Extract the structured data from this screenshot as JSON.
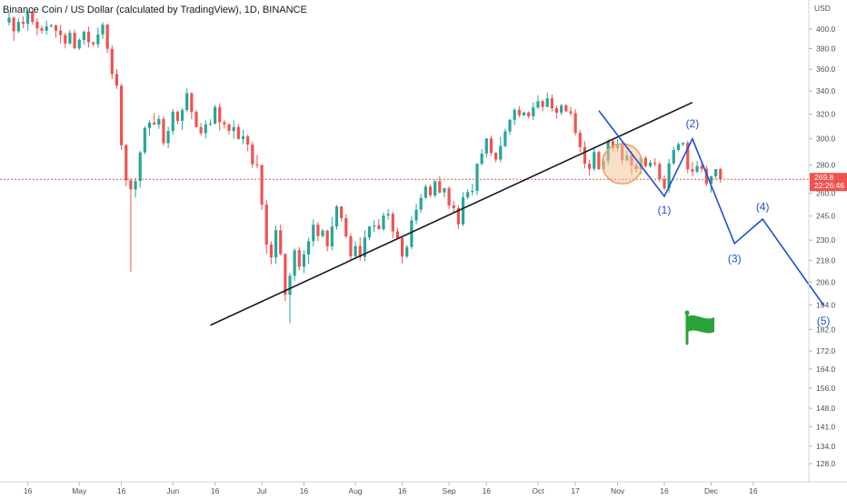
{
  "chart_data": {
    "type": "candlestick",
    "title": "Binance Coin / US Dollar (calculated by TradingView), 1D, BINANCE",
    "currency": "USD",
    "y_scale": "log",
    "ylim": [
      120,
      420
    ],
    "y_ticks": [
      "400.0",
      "380.0",
      "360.0",
      "340.0",
      "320.0",
      "300.0",
      "280.0",
      "260.0",
      "245.0",
      "230.0",
      "218.0",
      "206.0",
      "194.0",
      "182.0",
      "172.0",
      "164.0",
      "156.0",
      "148.0",
      "141.0",
      "134.0",
      "128.0"
    ],
    "x_ticks": [
      "16",
      "May",
      "16",
      "Jun",
      "16",
      "Jul",
      "16",
      "Aug",
      "16",
      "Sep",
      "16",
      "Oct",
      "17",
      "Nov",
      "16",
      "Dec",
      "16"
    ],
    "last_price": "269.8",
    "countdown": "22:26:46",
    "colors": {
      "up": "#26a69a",
      "down": "#ef5350",
      "trendline": "#131722",
      "wave": "#1e4fd6",
      "flag": "#2aa33a",
      "marker_fill": "#f5c49a",
      "marker_stroke": "#f0a060",
      "price_line": "#ef5350"
    },
    "candles": [
      [
        406.9,
        412.2,
        418.4,
        403.8
      ],
      [
        412.2,
        397.7,
        413.4,
        387.7
      ],
      [
        397.7,
        407.6,
        411.6,
        395.8
      ],
      [
        407.6,
        405.6,
        413.7,
        400.6
      ],
      [
        405.6,
        418.5,
        419.7,
        398.2
      ],
      [
        418.5,
        407.7,
        422.9,
        404.4
      ],
      [
        407.7,
        400.9,
        411.6,
        393.5
      ],
      [
        400.9,
        398.3,
        403.9,
        395.2
      ],
      [
        398.3,
        402.8,
        409.1,
        394.3
      ],
      [
        402.8,
        403.9,
        405.5,
        401.6
      ],
      [
        403.9,
        398.4,
        404.9,
        391.1
      ],
      [
        398.4,
        393.8,
        404.3,
        385.0
      ],
      [
        393.8,
        385.2,
        396.1,
        380.3
      ],
      [
        385.2,
        396.1,
        399.4,
        383.5
      ],
      [
        396.1,
        380.3,
        399.5,
        379.8
      ],
      [
        380.3,
        388.8,
        390.7,
        378.6
      ],
      [
        388.8,
        397.3,
        398.5,
        384.0
      ],
      [
        397.3,
        386.5,
        402.6,
        381.4
      ],
      [
        386.5,
        384.4,
        387.0,
        382.1
      ],
      [
        384.4,
        394.5,
        401.8,
        380.7
      ],
      [
        394.5,
        404.7,
        407.3,
        389.8
      ],
      [
        404.7,
        379.8,
        405.6,
        375.7
      ],
      [
        379.8,
        355.5,
        383.5,
        350.8
      ],
      [
        355.5,
        344.8,
        360.2,
        341.9
      ],
      [
        344.8,
        295.1,
        346.7,
        291.3
      ],
      [
        295.1,
        269.1,
        296.0,
        264.9
      ],
      [
        269.1,
        262.7,
        270.6,
        211.8
      ],
      [
        262.7,
        268.6,
        270.9,
        257.2
      ],
      [
        268.6,
        289.5,
        290.6,
        263.9
      ],
      [
        289.5,
        308.6,
        310.0,
        288.0
      ],
      [
        308.6,
        313.0,
        315.0,
        302.6
      ],
      [
        313.0,
        311.4,
        320.8,
        311.2
      ],
      [
        311.4,
        316.0,
        319.3,
        307.9
      ],
      [
        316.0,
        296.6,
        318.1,
        294.5
      ],
      [
        296.6,
        306.2,
        309.7,
        292.8
      ],
      [
        306.2,
        322.1,
        324.4,
        303.2
      ],
      [
        322.1,
        314.5,
        323.0,
        311.6
      ],
      [
        314.5,
        323.5,
        325.3,
        307.1
      ],
      [
        323.5,
        338.1,
        342.4,
        321.6
      ],
      [
        338.1,
        321.9,
        338.9,
        315.8
      ],
      [
        321.9,
        309.3,
        323.8,
        309.1
      ],
      [
        309.3,
        304.5,
        312.6,
        302.5
      ],
      [
        304.5,
        311.6,
        314.8,
        300.2
      ],
      [
        311.6,
        312.2,
        315.7,
        310.3
      ],
      [
        312.2,
        326.1,
        327.8,
        311.7
      ],
      [
        326.1,
        313.3,
        329.4,
        306.4
      ],
      [
        313.3,
        311.6,
        315.2,
        308.3
      ],
      [
        311.6,
        306.3,
        312.3,
        303.3
      ],
      [
        306.3,
        309.4,
        314.7,
        299.8
      ],
      [
        309.4,
        299.9,
        311.8,
        299.4
      ],
      [
        299.9,
        302.0,
        306.9,
        295.9
      ],
      [
        302.0,
        295.5,
        303.3,
        290.5
      ],
      [
        295.5,
        280.7,
        297.7,
        277.9
      ],
      [
        280.7,
        280.0,
        287.6,
        277.7
      ],
      [
        280.0,
        252.4,
        280.8,
        248.9
      ],
      [
        252.4,
        227.4,
        255.4,
        221.9
      ],
      [
        227.4,
        219.8,
        229.2,
        215.9
      ],
      [
        219.8,
        236.1,
        239.0,
        216.1
      ],
      [
        236.1,
        221.8,
        239.6,
        221.0
      ],
      [
        221.8,
        199.3,
        222.2,
        196.1
      ],
      [
        199.3,
        209.5,
        211.0,
        185.0
      ],
      [
        209.5,
        224.0,
        225.1,
        206.7
      ],
      [
        224.0,
        214.5,
        225.9,
        212.5
      ],
      [
        214.5,
        221.5,
        224.0,
        211.0
      ],
      [
        221.5,
        229.4,
        231.5,
        216.2
      ],
      [
        229.4,
        239.4,
        242.9,
        226.2
      ],
      [
        239.4,
        232.5,
        241.1,
        229.3
      ],
      [
        232.5,
        235.8,
        236.8,
        231.6
      ],
      [
        235.8,
        226.3,
        236.4,
        223.4
      ],
      [
        226.3,
        238.3,
        244.4,
        223.9
      ],
      [
        238.3,
        251.3,
        252.1,
        236.4
      ],
      [
        251.3,
        243.7,
        251.4,
        241.5
      ],
      [
        243.7,
        232.3,
        246.3,
        231.2
      ],
      [
        232.3,
        220.5,
        234.2,
        218.5
      ],
      [
        220.5,
        226.5,
        229.3,
        218.9
      ],
      [
        226.5,
        220.1,
        231.7,
        217.9
      ],
      [
        220.1,
        231.6,
        236.1,
        217.5
      ],
      [
        231.6,
        238.4,
        238.6,
        229.9
      ],
      [
        238.4,
        239.1,
        242.3,
        235.0
      ],
      [
        239.1,
        236.7,
        242.9,
        236.4
      ],
      [
        236.7,
        245.3,
        247.3,
        235.6
      ],
      [
        245.3,
        246.4,
        249.5,
        242.7
      ],
      [
        246.4,
        235.3,
        247.8,
        231.2
      ],
      [
        235.3,
        231.3,
        237.7,
        231.2
      ],
      [
        231.3,
        220.3,
        231.8,
        216.3
      ],
      [
        220.3,
        225.9,
        227.1,
        219.3
      ],
      [
        225.9,
        242.2,
        245.1,
        224.5
      ],
      [
        242.2,
        249.1,
        253.2,
        239.7
      ],
      [
        249.1,
        257.0,
        259.6,
        247.1
      ],
      [
        257.0,
        264.6,
        266.3,
        256.4
      ],
      [
        264.6,
        258.7,
        266.2,
        257.2
      ],
      [
        258.7,
        268.4,
        269.5,
        257.2
      ],
      [
        268.4,
        260.6,
        272.0,
        260.0
      ],
      [
        260.6,
        263.5,
        263.9,
        257.1
      ],
      [
        263.5,
        251.9,
        265.0,
        249.4
      ],
      [
        251.9,
        250.2,
        254.9,
        247.5
      ],
      [
        250.2,
        239.8,
        251.9,
        236.7
      ],
      [
        239.8,
        257.3,
        260.8,
        238.6
      ],
      [
        257.3,
        260.9,
        262.8,
        256.1
      ],
      [
        260.9,
        261.7,
        266.7,
        258.4
      ],
      [
        261.7,
        281.1,
        281.2,
        258.8
      ],
      [
        281.1,
        288.6,
        291.9,
        279.7
      ],
      [
        288.6,
        300.3,
        300.4,
        285.5
      ],
      [
        300.3,
        289.2,
        302.5,
        286.7
      ],
      [
        289.2,
        284.1,
        289.6,
        282.0
      ],
      [
        284.1,
        294.4,
        301.5,
        282.0
      ],
      [
        294.4,
        305.9,
        308.1,
        293.4
      ],
      [
        305.9,
        315.3,
        316.1,
        303.0
      ],
      [
        315.3,
        323.7,
        325.3,
        310.8
      ],
      [
        323.7,
        319.1,
        326.9,
        317.2
      ],
      [
        319.1,
        321.4,
        322.3,
        318.6
      ],
      [
        321.4,
        318.3,
        322.5,
        316.5
      ],
      [
        318.3,
        325.7,
        330.0,
        315.1
      ],
      [
        325.7,
        331.1,
        336.4,
        324.1
      ],
      [
        331.1,
        326.2,
        332.5,
        322.3
      ],
      [
        326.2,
        333.6,
        338.5,
        325.8
      ],
      [
        333.6,
        325.0,
        337.0,
        322.1
      ],
      [
        325.0,
        321.3,
        327.5,
        316.3
      ],
      [
        321.3,
        327.5,
        328.6,
        319.2
      ],
      [
        327.5,
        322.4,
        328.5,
        322.0
      ],
      [
        322.4,
        320.8,
        326.2,
        318.5
      ],
      [
        320.8,
        304.7,
        324.1,
        302.7
      ],
      [
        304.7,
        293.6,
        307.0,
        289.8
      ],
      [
        293.6,
        281.0,
        298.0,
        277.7
      ],
      [
        281.0,
        277.3,
        284.0,
        272.3
      ],
      [
        277.3,
        289.8,
        293.5,
        275.8
      ],
      [
        289.8,
        277.0,
        290.8,
        276.6
      ],
      [
        277.0,
        283.2,
        288.1,
        276.2
      ],
      [
        283.2,
        298.1,
        299.9,
        280.0
      ],
      [
        298.1,
        292.7,
        299.7,
        290.4
      ],
      [
        292.7,
        296.1,
        299.7,
        290.0
      ],
      [
        296.1,
        283.6,
        297.9,
        280.2
      ],
      [
        283.6,
        287.2,
        290.7,
        282.5
      ],
      [
        287.2,
        279.8,
        290.2,
        273.0
      ],
      [
        279.8,
        277.1,
        281.8,
        274.6
      ],
      [
        277.1,
        285.4,
        286.8,
        273.4
      ],
      [
        285.4,
        279.3,
        286.7,
        278.3
      ],
      [
        279.3,
        281.8,
        283.7,
        278.3
      ],
      [
        281.8,
        280.9,
        285.1,
        279.0
      ],
      [
        280.9,
        269.9,
        282.4,
        267.9
      ],
      [
        269.9,
        263.5,
        272.6,
        262.1
      ],
      [
        263.5,
        281.3,
        284.6,
        260.4
      ],
      [
        281.3,
        291.3,
        293.7,
        280.1
      ],
      [
        291.3,
        295.8,
        297.0,
        290.4
      ],
      [
        295.8,
        296.8,
        297.5,
        294.3
      ],
      [
        296.8,
        277.0,
        298.6,
        274.1
      ],
      [
        277.0,
        275.3,
        282.4,
        271.8
      ],
      [
        275.3,
        279.4,
        283.2,
        274.2
      ],
      [
        279.4,
        277.3,
        281.4,
        274.8
      ],
      [
        277.3,
        266.7,
        279.5,
        264.9
      ],
      [
        266.7,
        271.9,
        272.3,
        260.5
      ],
      [
        271.9,
        277.1,
        277.2,
        269.8
      ],
      [
        277.1,
        269.8,
        278.1,
        267.4
      ]
    ],
    "trendline": [
      [
        43,
        184
      ],
      [
        146,
        330
      ]
    ],
    "elliott_path": [
      [
        126,
        323
      ],
      [
        140,
        258
      ],
      [
        146,
        300
      ],
      [
        155,
        228
      ],
      [
        161,
        243
      ],
      [
        174,
        194
      ]
    ],
    "wave_labels": [
      {
        "label": "(1)",
        "x": 140,
        "y": 249
      },
      {
        "label": "(2)",
        "x": 146,
        "y": 312
      },
      {
        "label": "(3)",
        "x": 155,
        "y": 219
      },
      {
        "label": "(4)",
        "x": 161,
        "y": 251
      },
      {
        "label": "(5)",
        "x": 174,
        "y": 186
      }
    ],
    "highlight_point": [
      131,
      281
    ]
  }
}
